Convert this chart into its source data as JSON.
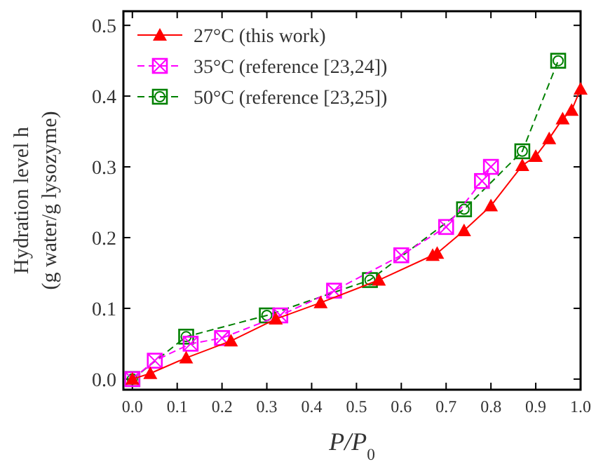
{
  "chart_data": {
    "type": "line",
    "xlabel": "P/P$_{0}$",
    "ylabel": "Hydration level h",
    "y2label": "(g water/g lysozyme)",
    "xlim": [
      -0.02,
      1.0
    ],
    "ylim": [
      -0.015,
      0.52
    ],
    "xticks": [
      {
        "value": 0,
        "label": "0.0"
      },
      0.1,
      0.2,
      0.3,
      0.4,
      0.5,
      0.6,
      0.7,
      0.8,
      0.9,
      {
        "value": 1,
        "label": "1.0"
      }
    ],
    "yticks": [
      {
        "value": 0,
        "label": "0.0"
      },
      0.1,
      0.2,
      0.3,
      0.4,
      0.5
    ],
    "legend": "top left",
    "grid": false,
    "series": [
      {
        "name": "27°C (this work)",
        "color": "#ff0000",
        "marker": "triangle",
        "line_style": "solid",
        "x": [
          0,
          0.04,
          0.12,
          0.22,
          0.32,
          0.42,
          0.55,
          0.67,
          0.68,
          0.74,
          0.8,
          0.87,
          0.9,
          0.93,
          0.96,
          0.98,
          1.0
        ],
        "values": [
          0,
          0.008,
          0.03,
          0.054,
          0.085,
          0.108,
          0.14,
          0.175,
          0.178,
          0.21,
          0.245,
          0.302,
          0.315,
          0.34,
          0.368,
          0.38,
          0.41
        ]
      },
      {
        "name": "35°C (reference [23,24])",
        "color": "#ff00ff",
        "marker": "square",
        "line_style": "dashed",
        "x": [
          0,
          0.05,
          0.13,
          0.2,
          0.33,
          0.45,
          0.6,
          0.7,
          0.78,
          0.8
        ],
        "values": [
          0,
          0.026,
          0.05,
          0.058,
          0.09,
          0.125,
          0.175,
          0.215,
          0.28,
          0.3
        ]
      },
      {
        "name": "50°C (reference [23,25])",
        "color": "#008000",
        "marker": "circle",
        "line_style": "dashed",
        "x": [
          0,
          0.12,
          0.3,
          0.53,
          0.74,
          0.87,
          0.95
        ],
        "values": [
          0,
          0.06,
          0.09,
          0.14,
          0.24,
          0.322,
          0.45
        ]
      }
    ]
  }
}
